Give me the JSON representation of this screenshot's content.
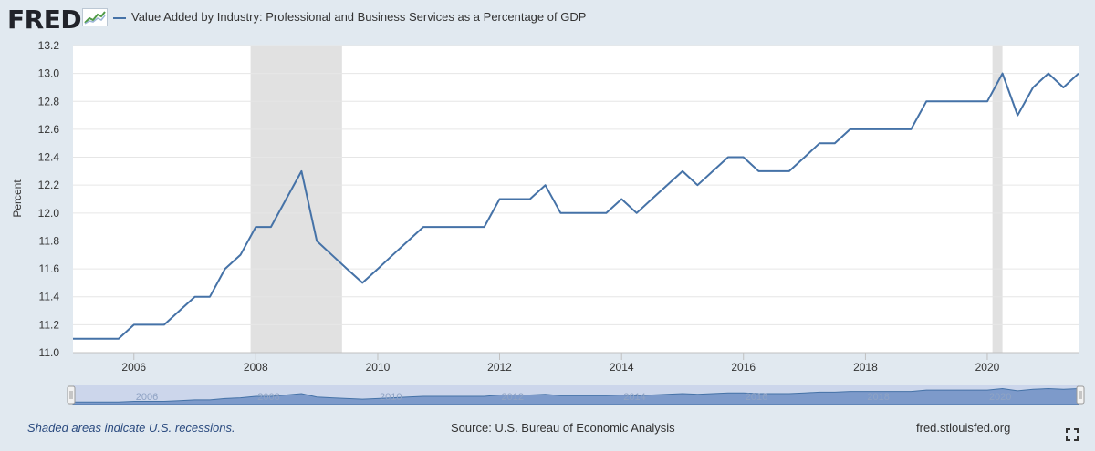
{
  "header": {
    "logo_text": "FRED",
    "legend_label": "Value Added by Industry: Professional and Business Services as a Percentage of GDP",
    "line_color": "#4572a7"
  },
  "footer": {
    "recession_note": "Shaded areas indicate U.S. recessions.",
    "source": "Source: U.S. Bureau of Economic Analysis",
    "url": "fred.stlouisfed.org",
    "fullscreen_icon": "fullscreen-icon"
  },
  "chart_data": {
    "type": "line",
    "title": "",
    "xlabel": "",
    "ylabel": "Percent",
    "xlim": [
      "2005-01-01",
      "2021-07-01"
    ],
    "ylim": [
      11.0,
      13.2
    ],
    "yticks": [
      "11.0",
      "11.2",
      "11.4",
      "11.6",
      "11.8",
      "12.0",
      "12.2",
      "12.4",
      "12.6",
      "12.8",
      "13.0",
      "13.2"
    ],
    "xticks": [
      "2006",
      "2008",
      "2010",
      "2012",
      "2014",
      "2016",
      "2018",
      "2020"
    ],
    "grid": true,
    "legend_position": "top-left",
    "recessions": [
      {
        "start": "2007-12-01",
        "end": "2009-06-01"
      },
      {
        "start": "2020-02-01",
        "end": "2020-04-01"
      }
    ],
    "series": [
      {
        "name": "Value Added by Industry: Professional and Business Services as a Percentage of GDP",
        "color": "#4572a7",
        "x": [
          "2005-01-01",
          "2005-04-01",
          "2005-07-01",
          "2005-10-01",
          "2006-01-01",
          "2006-04-01",
          "2006-07-01",
          "2006-10-01",
          "2007-01-01",
          "2007-04-01",
          "2007-07-01",
          "2007-10-01",
          "2008-01-01",
          "2008-04-01",
          "2008-07-01",
          "2008-10-01",
          "2009-01-01",
          "2009-04-01",
          "2009-07-01",
          "2009-10-01",
          "2010-01-01",
          "2010-04-01",
          "2010-07-01",
          "2010-10-01",
          "2011-01-01",
          "2011-04-01",
          "2011-07-01",
          "2011-10-01",
          "2012-01-01",
          "2012-04-01",
          "2012-07-01",
          "2012-10-01",
          "2013-01-01",
          "2013-04-01",
          "2013-07-01",
          "2013-10-01",
          "2014-01-01",
          "2014-04-01",
          "2014-07-01",
          "2014-10-01",
          "2015-01-01",
          "2015-04-01",
          "2015-07-01",
          "2015-10-01",
          "2016-01-01",
          "2016-04-01",
          "2016-07-01",
          "2016-10-01",
          "2017-01-01",
          "2017-04-01",
          "2017-07-01",
          "2017-10-01",
          "2018-01-01",
          "2018-04-01",
          "2018-07-01",
          "2018-10-01",
          "2019-01-01",
          "2019-04-01",
          "2019-07-01",
          "2019-10-01",
          "2020-01-01",
          "2020-04-01",
          "2020-07-01",
          "2020-10-01",
          "2021-01-01",
          "2021-04-01",
          "2021-07-01"
        ],
        "values": [
          11.1,
          11.1,
          11.1,
          11.1,
          11.2,
          11.2,
          11.2,
          11.3,
          11.4,
          11.4,
          11.6,
          11.7,
          11.9,
          11.9,
          12.1,
          12.3,
          11.8,
          11.7,
          11.6,
          11.5,
          11.6,
          11.7,
          11.8,
          11.9,
          11.9,
          11.9,
          11.9,
          11.9,
          12.1,
          12.1,
          12.1,
          12.2,
          12.0,
          12.0,
          12.0,
          12.0,
          12.1,
          12.0,
          12.1,
          12.2,
          12.3,
          12.2,
          12.3,
          12.4,
          12.4,
          12.3,
          12.3,
          12.3,
          12.4,
          12.5,
          12.5,
          12.6,
          12.6,
          12.6,
          12.6,
          12.6,
          12.8,
          12.8,
          12.8,
          12.8,
          12.8,
          13.0,
          12.7,
          12.9,
          13.0,
          12.9,
          13.0
        ]
      }
    ],
    "navigator_labels": [
      "2006",
      "2008",
      "2010",
      "2012",
      "2014",
      "2016",
      "2018",
      "2020"
    ]
  }
}
